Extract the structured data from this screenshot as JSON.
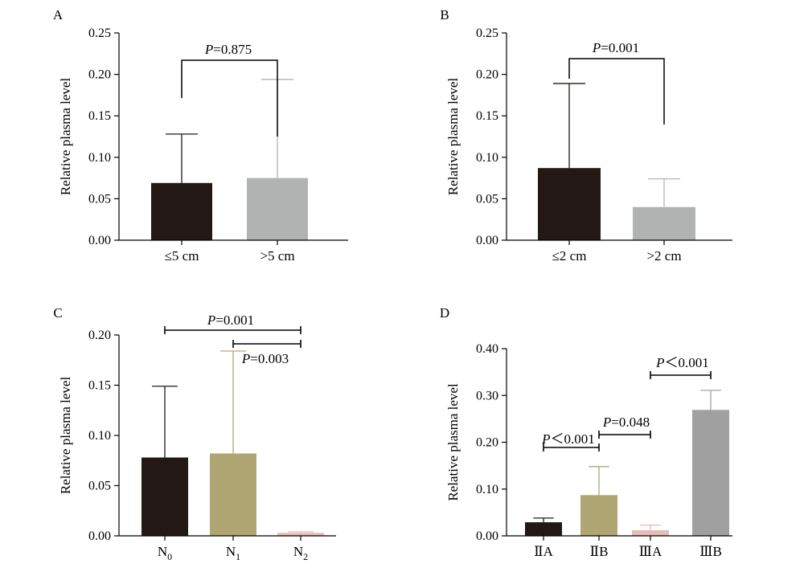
{
  "chart_data": [
    {
      "panel": "A",
      "type": "bar",
      "ylabel": "Relative plasma level",
      "ylim": [
        0,
        0.25
      ],
      "yticks": [
        "0.00",
        "0.05",
        "0.10",
        "0.15",
        "0.20",
        "0.25"
      ],
      "categories": [
        {
          "label": "≤5 cm",
          "sub": ""
        },
        {
          "label": ">5 cm",
          "sub": ""
        }
      ],
      "values": [
        0.069,
        0.075
      ],
      "error_upper": [
        0.128,
        0.194
      ],
      "colors": [
        "#231815",
        "#b1b3b3"
      ],
      "comparisons": [
        {
          "from": 0,
          "to": 1,
          "p_letter": "P",
          "p_text": "=0.875",
          "style": "bracket"
        }
      ]
    },
    {
      "panel": "B",
      "type": "bar",
      "ylabel": "Relative plasma level",
      "ylim": [
        0,
        0.25
      ],
      "yticks": [
        "0.00",
        "0.05",
        "0.10",
        "0.15",
        "0.20",
        "0.25"
      ],
      "categories": [
        {
          "label": "≤2 cm",
          "sub": ""
        },
        {
          "label": ">2 cm",
          "sub": ""
        }
      ],
      "values": [
        0.087,
        0.04
      ],
      "error_upper": [
        0.189,
        0.074
      ],
      "colors": [
        "#231815",
        "#b1b3b3"
      ],
      "comparisons": [
        {
          "from": 0,
          "to": 1,
          "p_letter": "P",
          "p_text": "=0.001",
          "style": "bracket"
        }
      ]
    },
    {
      "panel": "C",
      "type": "bar",
      "ylabel": "Relative plasma level",
      "ylim": [
        0,
        0.2
      ],
      "yticks": [
        "0.00",
        "0.05",
        "0.10",
        "0.15",
        "0.20"
      ],
      "categories": [
        {
          "label": "N",
          "sub": "0"
        },
        {
          "label": "N",
          "sub": "1"
        },
        {
          "label": "N",
          "sub": "2"
        }
      ],
      "values": [
        0.078,
        0.082,
        0.003
      ],
      "error_upper": [
        0.149,
        0.184,
        0.004
      ],
      "colors": [
        "#231815",
        "#afa674",
        "#e6bcb8"
      ],
      "comparisons": [
        {
          "from": 0,
          "to": 2,
          "p_letter": "P",
          "p_text": "=0.001",
          "style": "capped"
        },
        {
          "from": 1,
          "to": 2,
          "p_letter": "P",
          "p_text": "=0.003",
          "style": "capped"
        }
      ]
    },
    {
      "panel": "D",
      "type": "bar",
      "ylabel": "Relative plasma level",
      "ylim": [
        0,
        0.4
      ],
      "yticks": [
        "0.00",
        "0.10",
        "0.20",
        "0.30",
        "0.40"
      ],
      "categories": [
        {
          "label": "ⅡA",
          "sub": ""
        },
        {
          "label": "ⅡB",
          "sub": ""
        },
        {
          "label": "ⅢA",
          "sub": ""
        },
        {
          "label": "ⅢB",
          "sub": ""
        }
      ],
      "values": [
        0.029,
        0.087,
        0.012,
        0.269
      ],
      "error_upper": [
        0.038,
        0.148,
        0.023,
        0.311
      ],
      "colors": [
        "#231815",
        "#afa674",
        "#e6bcb8",
        "#a0a0a0"
      ],
      "comparisons": [
        {
          "from": 0,
          "to": 1,
          "p_letter": "P",
          "p_text": "＜0.001",
          "style": "capped"
        },
        {
          "from": 1,
          "to": 2,
          "p_letter": "P",
          "p_text": "=0.048",
          "style": "capped"
        },
        {
          "from": 2,
          "to": 3,
          "p_letter": "P",
          "p_text": "＜0.001",
          "style": "capped"
        }
      ]
    }
  ]
}
